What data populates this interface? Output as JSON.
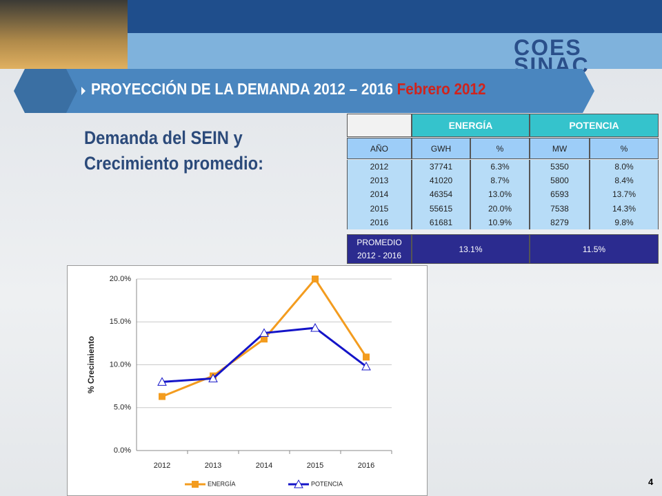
{
  "slide": {
    "title_main": "PROYECCIÓN DE LA DEMANDA 2012 – 2016",
    "title_highlight": "Febrero 2012",
    "subtitle": [
      "Demanda del SEIN y",
      "Crecimiento promedio:"
    ],
    "logo": [
      "COES",
      "SINAC"
    ],
    "page_number": "4"
  },
  "table": {
    "header_groups": [
      "ENERGÍA",
      "POTENCIA"
    ],
    "columns": [
      "AÑO",
      "GWH",
      "%",
      "MW",
      "%"
    ],
    "rows": [
      [
        "2012",
        "37741",
        "6.3%",
        "5350",
        "8.0%"
      ],
      [
        "2013",
        "41020",
        "8.7%",
        "5800",
        "8.4%"
      ],
      [
        "2014",
        "46354",
        "13.0%",
        "6593",
        "13.7%"
      ],
      [
        "2015",
        "55615",
        "20.0%",
        "7538",
        "14.3%"
      ],
      [
        "2016",
        "61681",
        "10.9%",
        "8279",
        "9.8%"
      ]
    ],
    "average": {
      "label": [
        "PROMEDIO",
        "2012 - 2016"
      ],
      "values": [
        "13.1%",
        "11.5%"
      ]
    }
  },
  "chart_data": {
    "type": "line",
    "y_label": "% Crecimiento",
    "categories": [
      "2012",
      "2013",
      "2014",
      "2015",
      "2016"
    ],
    "series": [
      {
        "name": "ENERGÍA",
        "color": "#f39c1f",
        "marker": "square",
        "values": [
          6.3,
          8.7,
          13.0,
          20.0,
          10.9
        ]
      },
      {
        "name": "POTENCIA",
        "color": "#1414c8",
        "marker": "triangle",
        "values": [
          8.0,
          8.4,
          13.7,
          14.3,
          9.8
        ]
      }
    ],
    "ylim": [
      0,
      20
    ],
    "yticks": [
      {
        "value": 0,
        "label": "0.0%"
      },
      {
        "value": 5,
        "label": "5.0%"
      },
      {
        "value": 10,
        "label": "10.0%"
      },
      {
        "value": 15,
        "label": "15.0%"
      },
      {
        "value": 20,
        "label": "20.0%"
      }
    ],
    "grid": true,
    "legend": "bottom"
  }
}
